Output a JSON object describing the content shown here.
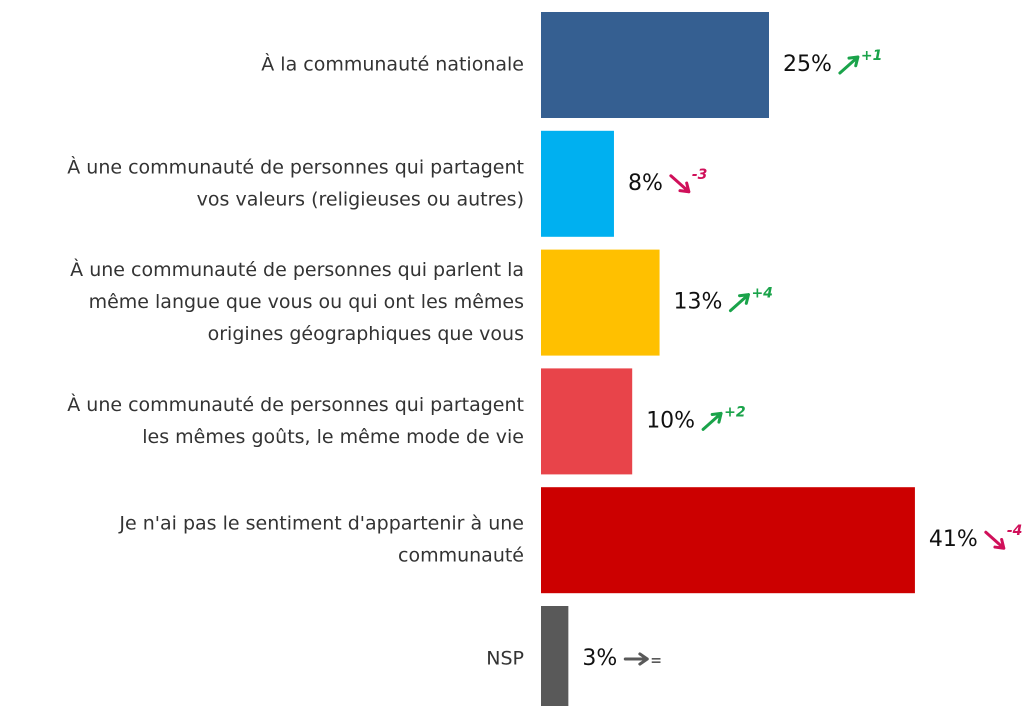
{
  "chart_data": {
    "type": "hbar",
    "categories": [
      [
        "À la communauté nationale"
      ],
      [
        "À une communauté de personnes qui partagent",
        "vos valeurs (religieuses ou autres)"
      ],
      [
        "À une communauté de personnes qui parlent la",
        "même langue que vous ou qui ont les mêmes",
        "origines géographiques que vous"
      ],
      [
        "À une communauté de personnes qui partagent",
        "les mêmes goûts, le même mode de vie"
      ],
      [
        "Je n'ai pas le sentiment d'appartenir à une",
        "communauté"
      ],
      [
        "NSP"
      ]
    ],
    "values": [
      25,
      8,
      13,
      10,
      41,
      3
    ],
    "value_labels": [
      "25%",
      "8%",
      "13%",
      "10%",
      "41%",
      "3%"
    ],
    "colors": [
      "#355f91",
      "#00b0f0",
      "#ffc000",
      "#e8444a",
      "#cc0000",
      "#595959"
    ],
    "changes": [
      {
        "value": 1,
        "label": "+1"
      },
      {
        "value": -3,
        "label": "-3"
      },
      {
        "value": 4,
        "label": "+4"
      },
      {
        "value": 2,
        "label": "+2"
      },
      {
        "value": -4,
        "label": "-4"
      },
      {
        "value": 0,
        "label": "="
      }
    ]
  }
}
